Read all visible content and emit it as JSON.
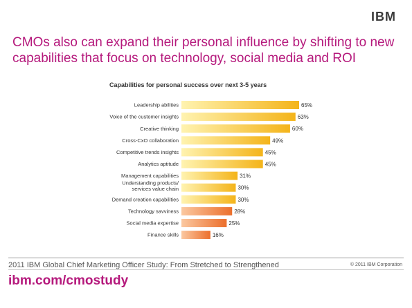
{
  "brand": {
    "logo": "IBM"
  },
  "headline": "CMOs also can expand their personal influence by shifting to new capabilities that focus on technology, social media and ROI",
  "footer": {
    "study": "2011 IBM Global Chief Marketing Officer Study: From Stretched to Strengthened",
    "copyright": "© 2011 IBM Corporation",
    "url": "ibm.com/cmostudy"
  },
  "colors": {
    "accent": "#b5197c",
    "bar_yellow": "#f7c21a",
    "bar_orange": "#ee7a2e"
  },
  "chart_data": {
    "type": "bar",
    "orientation": "horizontal",
    "title": "Capabilities for personal success over next 3-5 years",
    "categories": [
      "Leadership abilities",
      "Voice of the customer insights",
      "Creative thinking",
      "Cross-CxO collaboration",
      "Competitive trends insights",
      "Analytics aptitude",
      "Management capabilities",
      "Understanding products/ services value chain",
      "Demand creation capabilities",
      "Technology savviness",
      "Social media expertise",
      "Finance skills"
    ],
    "values": [
      65,
      63,
      60,
      49,
      45,
      45,
      31,
      30,
      30,
      28,
      25,
      16
    ],
    "value_labels": [
      "65%",
      "63%",
      "60%",
      "49%",
      "45%",
      "45%",
      "31%",
      "30%",
      "30%",
      "28%",
      "25%",
      "16%"
    ],
    "highlight": [
      false,
      false,
      false,
      false,
      false,
      false,
      false,
      false,
      false,
      true,
      true,
      true
    ],
    "xlim": [
      0,
      65
    ],
    "grid": false,
    "legend": "none"
  }
}
